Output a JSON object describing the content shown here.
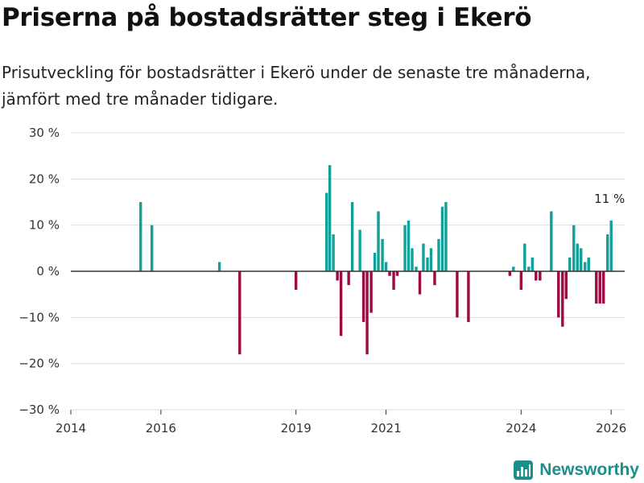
{
  "header": {
    "title": "Priserna på bostadsrätter steg i Ekerö",
    "subtitle": "Prisutveckling för bostadsrätter i Ekerö under de senaste tre månaderna, jämfört med tre månader tidigare."
  },
  "brand": {
    "name": "Newsworthy",
    "icon": "bar-chart-logo-icon"
  },
  "colors": {
    "positive": "#13a098",
    "negative": "#9a0a43",
    "grid": "#dddddd",
    "baseline": "#333333"
  },
  "chart_data": {
    "type": "bar",
    "title": "Priserna på bostadsrätter steg i Ekerö",
    "xlabel": "",
    "ylabel": "",
    "ylim": [
      -30,
      30
    ],
    "yticks": [
      30,
      20,
      10,
      0,
      -10,
      -20,
      -30
    ],
    "ytick_labels": [
      "30 %",
      "20 %",
      "10 %",
      "0 %",
      "−10 %",
      "−20 %",
      "−30 %"
    ],
    "xlim": [
      2014.0,
      2026.3
    ],
    "xticks": [
      2014,
      2016,
      2019,
      2021,
      2024,
      2026
    ],
    "xtick_labels": [
      "2014",
      "2016",
      "2019",
      "2021",
      "2024",
      "2026"
    ],
    "annotations": [
      {
        "x": 2026.0,
        "y": 11,
        "text": "11 %"
      }
    ],
    "series": [
      {
        "name": "Prisutveckling",
        "unit": "%",
        "x": [
          2015.55,
          2015.8,
          2017.3,
          2017.75,
          2019.0,
          2019.68,
          2019.75,
          2019.83,
          2019.92,
          2020.0,
          2020.17,
          2020.25,
          2020.42,
          2020.5,
          2020.58,
          2020.67,
          2020.75,
          2020.83,
          2020.92,
          2021.0,
          2021.08,
          2021.17,
          2021.25,
          2021.42,
          2021.5,
          2021.58,
          2021.67,
          2021.75,
          2021.83,
          2021.92,
          2022.0,
          2022.08,
          2022.17,
          2022.25,
          2022.33,
          2022.58,
          2022.83,
          2023.75,
          2023.83,
          2024.0,
          2024.08,
          2024.17,
          2024.25,
          2024.33,
          2024.42,
          2024.67,
          2024.83,
          2024.92,
          2025.0,
          2025.08,
          2025.17,
          2025.25,
          2025.33,
          2025.42,
          2025.5,
          2025.67,
          2025.75,
          2025.83,
          2025.92,
          2026.0
        ],
        "values": [
          15,
          10,
          2,
          -18,
          -4,
          17,
          23,
          8,
          -2,
          -14,
          -3,
          15,
          9,
          -11,
          -18,
          -9,
          4,
          13,
          7,
          2,
          -1,
          -4,
          -1,
          10,
          11,
          5,
          1,
          -5,
          6,
          3,
          5,
          -3,
          7,
          14,
          15,
          -10,
          -11,
          -1,
          1,
          -4,
          6,
          1,
          3,
          -2,
          -2,
          13,
          -10,
          -12,
          -6,
          3,
          10,
          6,
          5,
          2,
          3,
          -7,
          -7,
          -7,
          8,
          11
        ]
      }
    ]
  }
}
